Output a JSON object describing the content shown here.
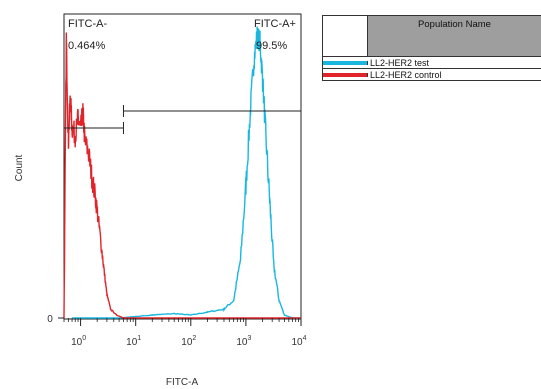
{
  "chart_data": {
    "type": "histogram-overlay",
    "title": "",
    "xlabel": "FITC-A",
    "ylabel": "Count",
    "x_scale": "log",
    "xlim": [
      0.5,
      10000
    ],
    "x_ticks": [
      {
        "base": "10",
        "exp": "0",
        "value": 1
      },
      {
        "base": "10",
        "exp": "1",
        "value": 10
      },
      {
        "base": "10",
        "exp": "2",
        "value": 100
      },
      {
        "base": "10",
        "exp": "3",
        "value": 1000
      },
      {
        "base": "10",
        "exp": "4",
        "value": 10000
      }
    ],
    "y_ticks": [
      {
        "label": "0",
        "value": 0
      }
    ],
    "ylim": [
      0,
      100
    ],
    "gates": [
      {
        "name": "FITC-A-",
        "percent": "0.464%",
        "x_range": [
          0.5,
          6
        ]
      },
      {
        "name": "FITC-A+",
        "percent": "99.5%",
        "x_range": [
          6,
          10000
        ]
      }
    ],
    "series": [
      {
        "name": "LL2-HER2 test",
        "color": "#19b7e0",
        "points": [
          [
            0.7,
            0
          ],
          [
            5,
            0
          ],
          [
            20,
            1
          ],
          [
            50,
            1.5
          ],
          [
            100,
            1
          ],
          [
            200,
            2
          ],
          [
            400,
            3
          ],
          [
            600,
            6
          ],
          [
            800,
            20
          ],
          [
            1000,
            45
          ],
          [
            1200,
            70
          ],
          [
            1400,
            88
          ],
          [
            1600,
            96
          ],
          [
            1800,
            94
          ],
          [
            2000,
            82
          ],
          [
            2300,
            62
          ],
          [
            2700,
            40
          ],
          [
            3200,
            18
          ],
          [
            4000,
            6
          ],
          [
            5000,
            1
          ],
          [
            7000,
            0
          ],
          [
            10000,
            0
          ]
        ]
      },
      {
        "name": "LL2-HER2 control",
        "color": "#e0242a",
        "points": [
          [
            0.5,
            0
          ],
          [
            0.55,
            95
          ],
          [
            0.6,
            60
          ],
          [
            0.65,
            75
          ],
          [
            0.7,
            65
          ],
          [
            0.8,
            62
          ],
          [
            0.9,
            68
          ],
          [
            1.0,
            64
          ],
          [
            1.1,
            70
          ],
          [
            1.2,
            60
          ],
          [
            1.4,
            56
          ],
          [
            1.6,
            48
          ],
          [
            1.9,
            40
          ],
          [
            2.2,
            30
          ],
          [
            2.6,
            18
          ],
          [
            3.0,
            8
          ],
          [
            3.5,
            3
          ],
          [
            4.5,
            1
          ],
          [
            6,
            0
          ],
          [
            10000,
            0
          ]
        ]
      }
    ],
    "legend": {
      "header": "Population Name",
      "placement": "top-right"
    }
  }
}
